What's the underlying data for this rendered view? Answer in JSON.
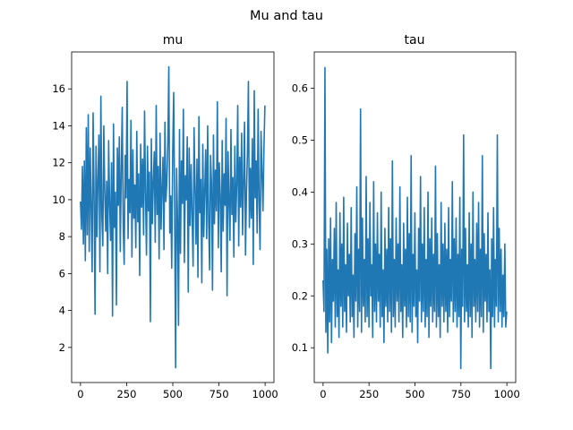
{
  "figure": {
    "title": "Mu and tau",
    "line_color": "#1f77b4"
  },
  "chart_data": [
    {
      "type": "line",
      "title": "mu",
      "xlabel": "",
      "ylabel": "",
      "xlim": [
        -48,
        1048
      ],
      "ylim": [
        0.1,
        18.0
      ],
      "xticks": [
        0,
        250,
        500,
        750,
        1000
      ],
      "yticks": [
        2,
        4,
        6,
        8,
        10,
        12,
        14,
        16
      ],
      "grid": false,
      "series": [
        {
          "n_points": 1000,
          "values": [
            9.9,
            8.4,
            11.8,
            7.6,
            12.1,
            6.7,
            13.9,
            8.1,
            14.6,
            7.2,
            12.8,
            9.5,
            6.1,
            14.7,
            10.2,
            3.8,
            12.9,
            8.0,
            11.2,
            13.5,
            6.1,
            15.6,
            9.1,
            7.5,
            14.0,
            10.5,
            8.3,
            11.0,
            6.0,
            13.2,
            9.8,
            7.8,
            12.0,
            3.7,
            14.1,
            8.5,
            10.4,
            4.3,
            12.8,
            9.7,
            13.4,
            7.2,
            11.6,
            15.0,
            8.6,
            6.5,
            12.4,
            10.1,
            16.4,
            7.9,
            11.1,
            9.3,
            14.3,
            6.9,
            12.7,
            9.0,
            10.8,
            7.4,
            13.7,
            8.8,
            11.4,
            5.9,
            13.0,
            9.6,
            12.2,
            8.1,
            14.8,
            10.3,
            7.0,
            12.9,
            9.4,
            11.5,
            3.4,
            13.3,
            8.7,
            10.9,
            12.6,
            7.7,
            15.1,
            9.2,
            11.8,
            6.8,
            13.6,
            8.4,
            10.6,
            12.3,
            7.3,
            14.2,
            9.9,
            11.0,
            13.1,
            17.2,
            8.2,
            10.2,
            6.3,
            12.5,
            15.8,
            9.5,
            0.9,
            11.7,
            8.9,
            3.2,
            13.8,
            7.1,
            12.1,
            9.8,
            14.9,
            6.6,
            11.3,
            10.0,
            13.4,
            5.0,
            12.8,
            8.6,
            11.9,
            9.1,
            6.4,
            13.9,
            10.7,
            7.6,
            12.2,
            5.8,
            14.5,
            9.3,
            11.1,
            5.5,
            13.0,
            8.0,
            10.5,
            12.7,
            7.9,
            14.0,
            9.0,
            6.2,
            12.4,
            10.9,
            5.1,
            13.5,
            8.7,
            11.6,
            9.4,
            15.3,
            7.4,
            12.0,
            10.2,
            6.1,
            13.2,
            8.3,
            11.4,
            9.7,
            14.4,
            4.8,
            12.6,
            10.0,
            7.8,
            13.8,
            9.2,
            11.2,
            6.9,
            12.9,
            8.8,
            10.8,
            15.1,
            7.5,
            12.3,
            9.6,
            13.6,
            8.1,
            11.0,
            14.2,
            7.0,
            10.4,
            12.5,
            16.4,
            8.5,
            11.7,
            9.0,
            13.3,
            6.5,
            15.9,
            10.1,
            12.1,
            8.2,
            14.9,
            9.9,
            7.3,
            13.7,
            11.5,
            9.4,
            12.8,
            15.1
          ]
        }
      ]
    },
    {
      "type": "line",
      "title": "tau",
      "xlabel": "",
      "ylabel": "",
      "xlim": [
        -48,
        1048
      ],
      "ylim": [
        0.033,
        0.67
      ],
      "xticks": [
        0,
        250,
        500,
        750,
        1000
      ],
      "yticks": [
        0.1,
        0.2,
        0.3,
        0.4,
        0.5,
        0.6
      ],
      "grid": false,
      "series": [
        {
          "n_points": 1000,
          "values": [
            0.23,
            0.17,
            0.64,
            0.13,
            0.29,
            0.09,
            0.31,
            0.15,
            0.35,
            0.11,
            0.27,
            0.19,
            0.33,
            0.14,
            0.38,
            0.16,
            0.25,
            0.12,
            0.36,
            0.18,
            0.3,
            0.14,
            0.39,
            0.17,
            0.26,
            0.13,
            0.34,
            0.2,
            0.28,
            0.15,
            0.37,
            0.16,
            0.24,
            0.12,
            0.32,
            0.19,
            0.41,
            0.14,
            0.29,
            0.17,
            0.56,
            0.13,
            0.35,
            0.18,
            0.27,
            0.15,
            0.43,
            0.16,
            0.31,
            0.14,
            0.38,
            0.2,
            0.26,
            0.12,
            0.42,
            0.17,
            0.3,
            0.15,
            0.36,
            0.19,
            0.28,
            0.14,
            0.4,
            0.16,
            0.25,
            0.11,
            0.33,
            0.18,
            0.29,
            0.15,
            0.37,
            0.17,
            0.31,
            0.13,
            0.46,
            0.16,
            0.27,
            0.14,
            0.35,
            0.19,
            0.3,
            0.15,
            0.41,
            0.17,
            0.26,
            0.12,
            0.34,
            0.18,
            0.29,
            0.14,
            0.39,
            0.16,
            0.32,
            0.15,
            0.47,
            0.13,
            0.28,
            0.18,
            0.36,
            0.16,
            0.25,
            0.11,
            0.33,
            0.19,
            0.43,
            0.15,
            0.3,
            0.17,
            0.37,
            0.14,
            0.27,
            0.16,
            0.4,
            0.12,
            0.31,
            0.18,
            0.35,
            0.15,
            0.28,
            0.17,
            0.45,
            0.14,
            0.32,
            0.16,
            0.26,
            0.12,
            0.38,
            0.18,
            0.3,
            0.15,
            0.34,
            0.17,
            0.29,
            0.13,
            0.37,
            0.16,
            0.27,
            0.19,
            0.42,
            0.15,
            0.31,
            0.17,
            0.35,
            0.14,
            0.28,
            0.16,
            0.39,
            0.06,
            0.29,
            0.18,
            0.51,
            0.15,
            0.33,
            0.17,
            0.26,
            0.14,
            0.36,
            0.16,
            0.3,
            0.12,
            0.4,
            0.18,
            0.27,
            0.15,
            0.34,
            0.17,
            0.38,
            0.14,
            0.29,
            0.16,
            0.47,
            0.13,
            0.32,
            0.19,
            0.28,
            0.15,
            0.36,
            0.17,
            0.25,
            0.06,
            0.31,
            0.16,
            0.37,
            0.14,
            0.27,
            0.18,
            0.51,
            0.15,
            0.33,
            0.17,
            0.29,
            0.14,
            0.24,
            0.16,
            0.3,
            0.14,
            0.17
          ]
        }
      ]
    }
  ]
}
